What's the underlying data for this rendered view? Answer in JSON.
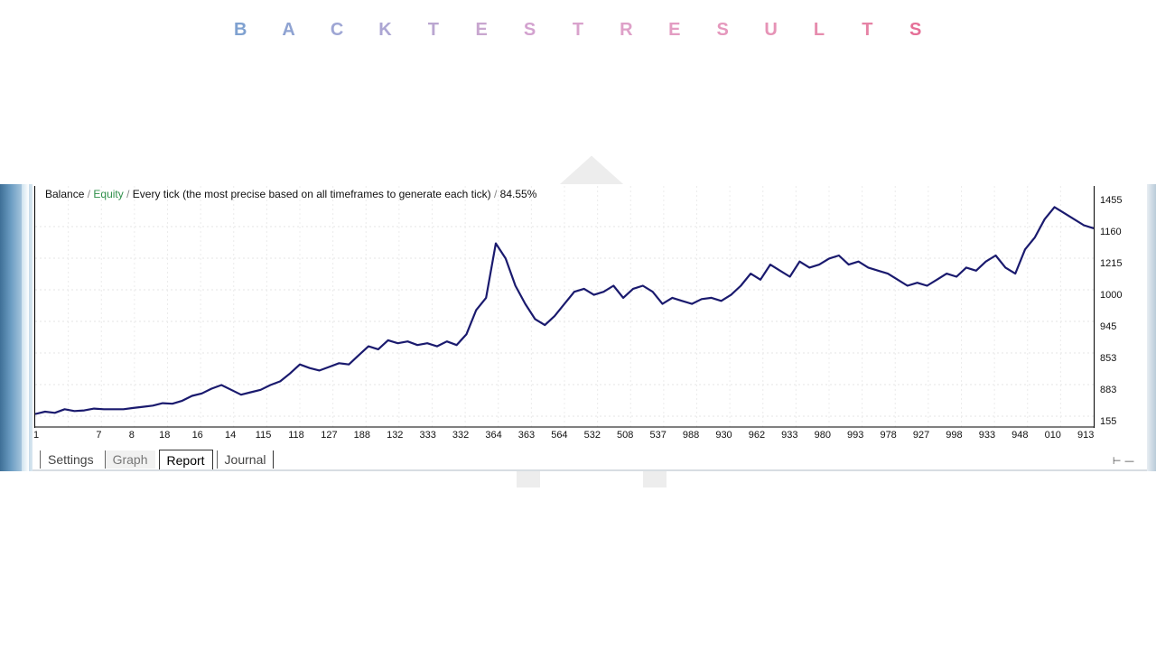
{
  "title": {
    "letters": [
      "B",
      "A",
      "C",
      "K",
      "T",
      "E",
      "S",
      "T",
      "R",
      "E",
      "S",
      "U",
      "L",
      "T",
      "S"
    ],
    "colors": [
      "#7fa1d0",
      "#8fa3d2",
      "#9ea6d4",
      "#aca6d3",
      "#baa6d0",
      "#c8a6cf",
      "#d3a2cf",
      "#d9a2cc",
      "#dea0c8",
      "#e39cc2",
      "#e598bd",
      "#e693b6",
      "#e68bad",
      "#e682a5",
      "#e56f97"
    ]
  },
  "legend": {
    "balance": "Balance",
    "sep1": "/",
    "equity": "Equity",
    "sep2": "/",
    "mode": "Every tick (the most precise based on all timeframes to generate each tick)",
    "sep3": "/",
    "quality": "84.55%"
  },
  "y_labels": [
    "1455",
    "1160",
    "1215",
    "1000",
    "945",
    "853",
    "883",
    "155"
  ],
  "x_labels": [
    "1",
    "7",
    "8",
    "18",
    "16",
    "14",
    "115",
    "118",
    "127",
    "188",
    "132",
    "333",
    "332",
    "364",
    "363",
    "564",
    "532",
    "508",
    "537",
    "988",
    "930",
    "962",
    "933",
    "980",
    "993",
    "978",
    "927",
    "998",
    "933",
    "948",
    "010",
    "913"
  ],
  "chart_data": {
    "type": "line",
    "title": "",
    "xlabel": "",
    "ylabel": "",
    "grid": true,
    "series": [
      {
        "name": "Balance",
        "color": "#1a1a6e",
        "values": [
          838,
          842,
          840,
          846,
          843,
          844,
          847,
          846,
          846,
          846,
          848,
          850,
          852,
          856,
          855,
          860,
          868,
          872,
          880,
          886,
          878,
          870,
          874,
          878,
          886,
          892,
          905,
          920,
          914,
          910,
          916,
          922,
          920,
          935,
          950,
          945,
          960,
          955,
          958,
          952,
          955,
          950,
          958,
          952,
          970,
          1010,
          1030,
          1120,
          1095,
          1050,
          1020,
          995,
          985,
          1000,
          1020,
          1040,
          1045,
          1035,
          1040,
          1050,
          1030,
          1045,
          1050,
          1040,
          1020,
          1030,
          1025,
          1020,
          1028,
          1030,
          1025,
          1035,
          1050,
          1070,
          1060,
          1085,
          1075,
          1065,
          1090,
          1080,
          1085,
          1095,
          1100,
          1085,
          1090,
          1080,
          1075,
          1070,
          1060,
          1050,
          1055,
          1050,
          1060,
          1070,
          1065,
          1080,
          1075,
          1090,
          1100,
          1080,
          1070,
          1110,
          1130,
          1160,
          1180,
          1170,
          1160,
          1150,
          1145
        ]
      },
      {
        "name": "Equity",
        "color": "#2f8f4a",
        "values": []
      }
    ],
    "ylim": [
      830,
      1200
    ]
  },
  "tabs": [
    {
      "label": "Settings"
    },
    {
      "label": "Graph"
    },
    {
      "label": "Report"
    },
    {
      "label": "Journal"
    }
  ]
}
